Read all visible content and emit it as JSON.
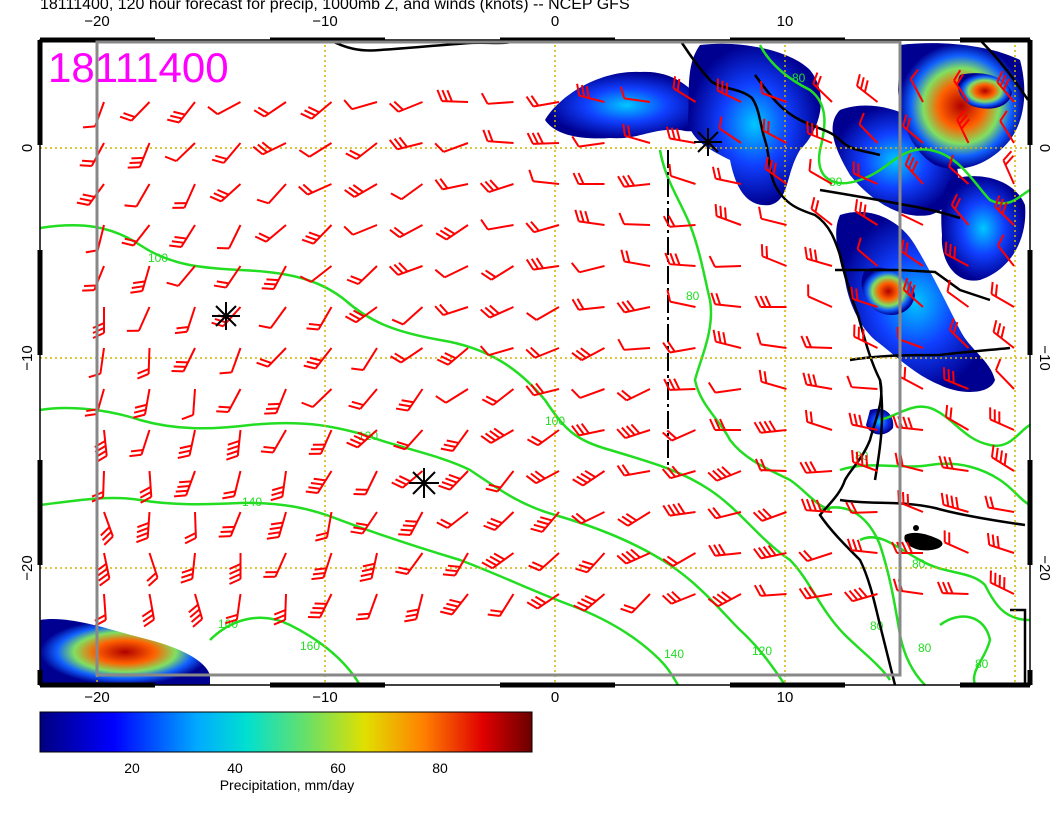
{
  "title": "18111400, 120 hour forecast for precip, 1000mb Z, and winds (knots) -- NCEP GFS",
  "stamp": "18111400",
  "axes": {
    "x_ticks": [
      "−20",
      "−10",
      "0",
      "10"
    ],
    "y_ticks": [
      "0",
      "−10",
      "−20"
    ]
  },
  "contours": {
    "labels": [
      "100",
      "120",
      "140",
      "160",
      "100",
      "120",
      "140",
      "160",
      "80",
      "80",
      "80",
      "80",
      "80",
      "80",
      "80",
      "80"
    ]
  },
  "colorbar": {
    "ticks": [
      "20",
      "40",
      "60",
      "80"
    ],
    "label": "Precipitation, mm/day"
  },
  "colors": {
    "barbs": "#ff0000",
    "contours": "#22dd22",
    "coast": "#000000",
    "grid": "#d4b400",
    "stamp": "#ff00ff"
  }
}
